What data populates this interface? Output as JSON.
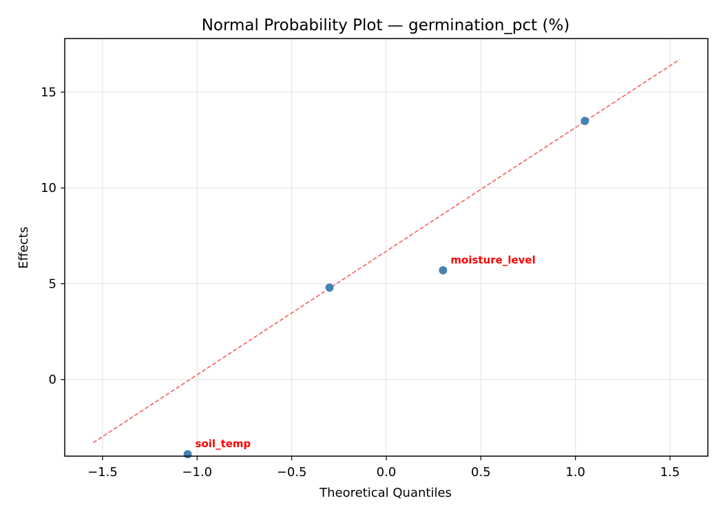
{
  "chart_data": {
    "type": "scatter",
    "title": "Normal Probability Plot — germination_pct (%)",
    "xlabel": "Theoretical Quantiles",
    "ylabel": "Effects",
    "xlim": [
      -1.7,
      1.7
    ],
    "ylim": [
      -4.0,
      17.8
    ],
    "xticks": [
      -1.5,
      -1.0,
      -0.5,
      0.0,
      0.5,
      1.0,
      1.5
    ],
    "xtick_labels": [
      "−1.5",
      "−1.0",
      "−0.5",
      "0.0",
      "0.5",
      "1.0",
      "1.5"
    ],
    "yticks": [
      0,
      5,
      10,
      15
    ],
    "ytick_labels": [
      "0",
      "5",
      "10",
      "15"
    ],
    "grid": true,
    "points": [
      {
        "x": -1.05,
        "y": -3.9,
        "label": "soil_temp"
      },
      {
        "x": -0.3,
        "y": 4.8,
        "label": ""
      },
      {
        "x": 0.3,
        "y": 5.7,
        "label": "moisture_level"
      },
      {
        "x": 1.05,
        "y": 13.5,
        "label": ""
      }
    ],
    "reference_line": {
      "x": [
        -1.55,
        1.55
      ],
      "y": [
        -3.3,
        16.7
      ]
    },
    "colors": {
      "points": "#4682b4",
      "reference_line": "#f0605a",
      "annotation": "#ff0000",
      "grid": "#e0e0e0"
    }
  }
}
